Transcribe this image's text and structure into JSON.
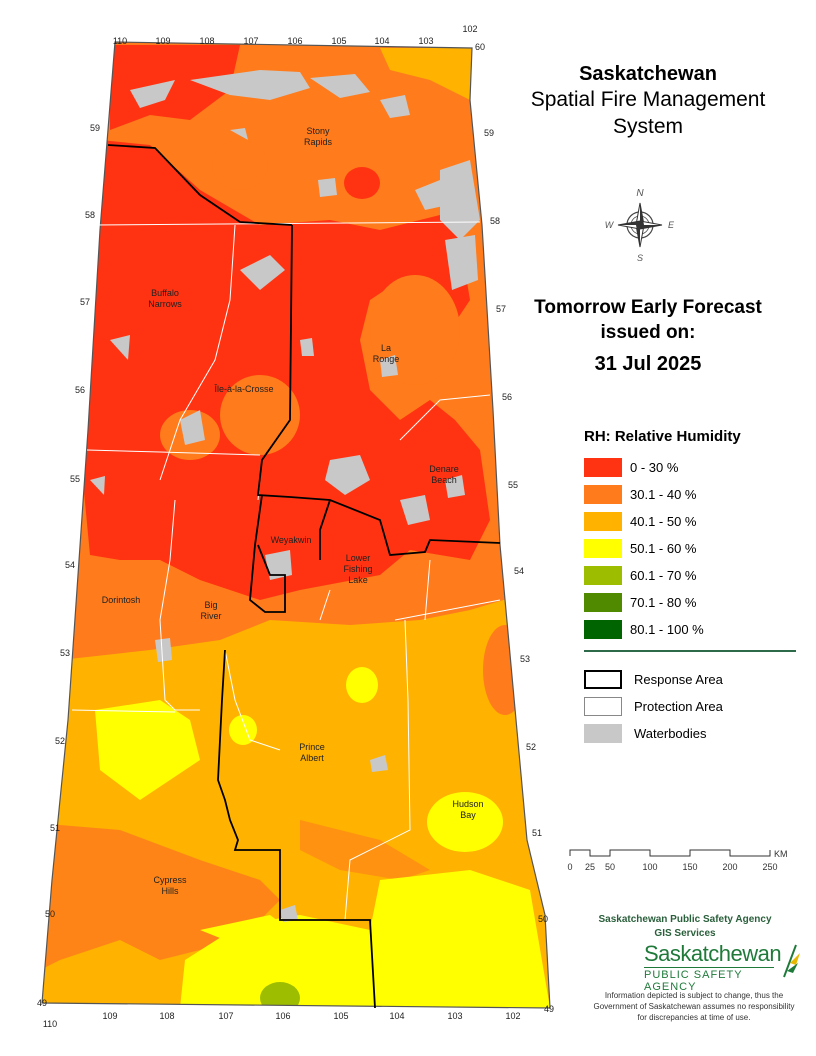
{
  "title": {
    "line1": "Saskatchewan",
    "line2": "Spatial Fire Management",
    "line3": "System"
  },
  "forecast": {
    "line1": "Tomorrow Early Forecast",
    "line2": "issued on:",
    "date": "31 Jul 2025"
  },
  "legend": {
    "title": "RH: Relative Humidity",
    "classes": [
      {
        "label": "0 - 30 %",
        "color": "#ff3311"
      },
      {
        "label": "30.1 - 40 %",
        "color": "#ff7b1b"
      },
      {
        "label": "40.1 - 50 %",
        "color": "#ffb300"
      },
      {
        "label": "50.1 - 60 %",
        "color": "#ffff00"
      },
      {
        "label": "60.1 - 70 %",
        "color": "#9cbd00"
      },
      {
        "label": "70.1 - 80 %",
        "color": "#4f8a00"
      },
      {
        "label": "80.1 - 100 %",
        "color": "#006400"
      }
    ],
    "features": [
      {
        "label": "Response Area"
      },
      {
        "label": "Protection Area"
      },
      {
        "label": "Waterbodies"
      }
    ]
  },
  "scale": {
    "ticks": [
      "0",
      "25",
      "50",
      "100",
      "150",
      "200",
      "250"
    ],
    "unit": "KM"
  },
  "places": {
    "stony_rapids": [
      "Stony",
      "Rapids"
    ],
    "buffalo_narrows": [
      "Buffalo",
      "Narrows"
    ],
    "la_ronge": [
      "La",
      "Ronge"
    ],
    "ile_a_la_crosse": "Île-à-la-Crosse",
    "denare_beach": [
      "Denare",
      "Beach"
    ],
    "weyakwin": "Weyakwin",
    "lower_fishing_lake": [
      "Lower",
      "Fishing",
      "Lake"
    ],
    "dorintosh": "Dorintosh",
    "big_river": [
      "Big",
      "River"
    ],
    "prince_albert": [
      "Prince",
      "Albert"
    ],
    "hudson_bay": [
      "Hudson",
      "Bay"
    ],
    "cypress_hills": [
      "Cypress",
      "Hills"
    ]
  },
  "graticule": {
    "top_longitudes": [
      "110",
      "109",
      "108",
      "107",
      "106",
      "105",
      "104",
      "103",
      "102"
    ],
    "bottom_longitudes": [
      "110",
      "109",
      "108",
      "107",
      "106",
      "105",
      "104",
      "103",
      "102"
    ],
    "latitudes": [
      "60",
      "59",
      "58",
      "57",
      "56",
      "55",
      "54",
      "53",
      "52",
      "51",
      "50",
      "49"
    ]
  },
  "agency": {
    "line1": "Saskatchewan Public Safety Agency",
    "line2": "GIS  Services"
  },
  "logo": {
    "main": "Saskatchewan",
    "sub": "PUBLIC SAFETY AGENCY"
  },
  "disclaimer": "Information depicted is subject to change, thus the Government of Saskatchewan assumes no responsibility for discrepancies at time of use."
}
